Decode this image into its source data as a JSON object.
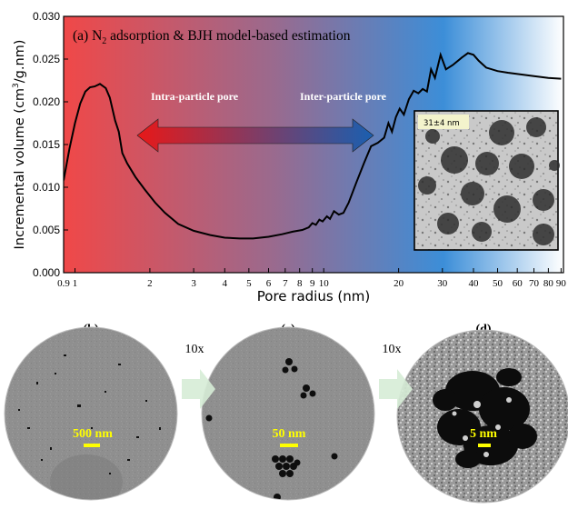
{
  "chart_data": {
    "type": "line",
    "title_parts": {
      "prefix": "(a) N",
      "subscript": "2",
      "suffix": " adsorption & BJH model-based estimation"
    },
    "xlabel": "Pore radius (nm)",
    "ylabel_parts": {
      "a": "Incremental volume (cm",
      "sup": "3",
      "b": "/g.nm)"
    },
    "xscale": "log",
    "xlim": [
      0.9,
      92
    ],
    "ylim": [
      0,
      0.03
    ],
    "x_ticks": [
      {
        "v": 0.9,
        "label": "0.9"
      },
      {
        "v": 1,
        "label": "1"
      },
      {
        "v": 2,
        "label": "2"
      },
      {
        "v": 3,
        "label": "3"
      },
      {
        "v": 4,
        "label": "4"
      },
      {
        "v": 5,
        "label": "5"
      },
      {
        "v": 6,
        "label": "6"
      },
      {
        "v": 7,
        "label": "7"
      },
      {
        "v": 8,
        "label": "8"
      },
      {
        "v": 9,
        "label": "9"
      },
      {
        "v": 10,
        "label": "10"
      },
      {
        "v": 20,
        "label": "20"
      },
      {
        "v": 30,
        "label": "30"
      },
      {
        "v": 40,
        "label": "40"
      },
      {
        "v": 50,
        "label": "50"
      },
      {
        "v": 60,
        "label": "60"
      },
      {
        "v": 70,
        "label": "70"
      },
      {
        "v": 80,
        "label": "80"
      },
      {
        "v": 90,
        "label": "90"
      }
    ],
    "y_ticks": [
      {
        "v": 0,
        "label": "0.000"
      },
      {
        "v": 0.005,
        "label": "0.005"
      },
      {
        "v": 0.01,
        "label": "0.010"
      },
      {
        "v": 0.015,
        "label": "0.015"
      },
      {
        "v": 0.02,
        "label": "0.020"
      },
      {
        "v": 0.025,
        "label": "0.025"
      },
      {
        "v": 0.03,
        "label": "0.030"
      }
    ],
    "series": [
      {
        "color": "#000000",
        "points": [
          [
            0.9,
            0.0108
          ],
          [
            0.95,
            0.0145
          ],
          [
            1.0,
            0.0175
          ],
          [
            1.05,
            0.0198
          ],
          [
            1.1,
            0.0212
          ],
          [
            1.15,
            0.0217
          ],
          [
            1.2,
            0.0218
          ],
          [
            1.26,
            0.0221
          ],
          [
            1.33,
            0.0216
          ],
          [
            1.38,
            0.0205
          ],
          [
            1.45,
            0.0178
          ],
          [
            1.5,
            0.0165
          ],
          [
            1.55,
            0.014
          ],
          [
            1.62,
            0.0128
          ],
          [
            1.75,
            0.0112
          ],
          [
            1.9,
            0.0098
          ],
          [
            2.1,
            0.0082
          ],
          [
            2.3,
            0.007
          ],
          [
            2.6,
            0.0057
          ],
          [
            3.0,
            0.0049
          ],
          [
            3.5,
            0.0044
          ],
          [
            4.0,
            0.0041
          ],
          [
            4.6,
            0.004
          ],
          [
            5.2,
            0.004
          ],
          [
            6.0,
            0.0042
          ],
          [
            6.8,
            0.0045
          ],
          [
            7.5,
            0.0048
          ],
          [
            8.2,
            0.005
          ],
          [
            8.7,
            0.0053
          ],
          [
            9.0,
            0.0058
          ],
          [
            9.3,
            0.0056
          ],
          [
            9.6,
            0.0062
          ],
          [
            9.9,
            0.006
          ],
          [
            10.3,
            0.0066
          ],
          [
            10.6,
            0.0063
          ],
          [
            11.0,
            0.0072
          ],
          [
            11.5,
            0.0068
          ],
          [
            12.0,
            0.007
          ],
          [
            12.6,
            0.0082
          ],
          [
            13.5,
            0.0105
          ],
          [
            14.5,
            0.0128
          ],
          [
            15.5,
            0.0148
          ],
          [
            16.5,
            0.0152
          ],
          [
            17.5,
            0.0158
          ],
          [
            18.2,
            0.0175
          ],
          [
            18.8,
            0.0165
          ],
          [
            19.5,
            0.0182
          ],
          [
            20.2,
            0.0192
          ],
          [
            21.0,
            0.0185
          ],
          [
            22.0,
            0.0203
          ],
          [
            23.0,
            0.0213
          ],
          [
            24.0,
            0.021
          ],
          [
            25.0,
            0.0215
          ],
          [
            26.0,
            0.0212
          ],
          [
            27.0,
            0.0238
          ],
          [
            28.0,
            0.0228
          ],
          [
            29.5,
            0.0255
          ],
          [
            31.0,
            0.0238
          ],
          [
            33.0,
            0.0243
          ],
          [
            36.0,
            0.0252
          ],
          [
            38.0,
            0.0257
          ],
          [
            40.0,
            0.0255
          ],
          [
            42.0,
            0.0248
          ],
          [
            45.0,
            0.024
          ],
          [
            50.0,
            0.0236
          ],
          [
            55.0,
            0.0234
          ],
          [
            62.0,
            0.0232
          ],
          [
            70.0,
            0.023
          ],
          [
            80.0,
            0.0228
          ],
          [
            90.0,
            0.0227
          ]
        ]
      }
    ],
    "background_gradient": [
      "#f04848",
      "#9a6a8e",
      "#3c8ed8",
      "#ffffff"
    ],
    "annotations": [
      {
        "text": "Intra-particle pore"
      },
      {
        "text": "Inter-particle pore"
      }
    ],
    "arrow_colors": [
      "#e81818",
      "#1a5fb0"
    ],
    "inset": {
      "label": "31±4 nm"
    }
  },
  "panels": [
    {
      "label": "(b)",
      "scale": "500 nm"
    },
    {
      "label": "(c)",
      "scale": "50 nm"
    },
    {
      "label": "(d)",
      "scale": "5 nm"
    }
  ],
  "zoom_label": "10x",
  "zoom_labels": [
    "10x",
    "10x"
  ],
  "colors": {
    "scale_text": "#ffff00",
    "zoom_arrow": "#d6ecd6"
  }
}
